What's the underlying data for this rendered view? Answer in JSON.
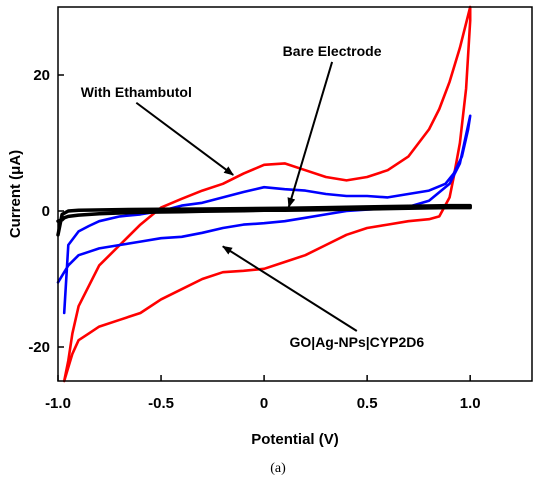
{
  "chart_data": {
    "type": "line",
    "xlabel": "Potential (V)",
    "ylabel": "Current (μA)",
    "xlim": [
      -1.0,
      1.3
    ],
    "ylim": [
      -25,
      30
    ],
    "xticks": [
      -1.0,
      -0.5,
      0,
      0.5,
      1.0
    ],
    "xtick_labels": [
      "-1.0",
      "-0.5",
      "0",
      "0.5",
      "1.0"
    ],
    "yticks": [
      -20,
      0,
      20
    ],
    "ytick_labels": [
      "-20",
      "0",
      "20"
    ],
    "grid": false,
    "legend": "none",
    "series": [
      {
        "color": "#ff0000",
        "x": [
          -0.97,
          -0.95,
          -0.93,
          -0.9,
          -0.85,
          -0.8,
          -0.7,
          -0.6,
          -0.5,
          -0.4,
          -0.3,
          -0.2,
          -0.1,
          0.0,
          0.1,
          0.2,
          0.3,
          0.4,
          0.5,
          0.6,
          0.7,
          0.8,
          0.85,
          0.9,
          0.95,
          1.0,
          1.0,
          0.98,
          0.95,
          0.92,
          0.9,
          0.85,
          0.8,
          0.7,
          0.6,
          0.5,
          0.4,
          0.3,
          0.2,
          0.1,
          0.0,
          -0.1,
          -0.2,
          -0.3,
          -0.4,
          -0.5,
          -0.6,
          -0.7,
          -0.8,
          -0.85,
          -0.9,
          -0.93,
          -0.95,
          -0.97
        ],
        "y": [
          -25,
          -22,
          -18,
          -14,
          -11,
          -8,
          -5,
          -2,
          0.5,
          1.8,
          3,
          4,
          5.5,
          6.8,
          7,
          6,
          5,
          4.5,
          5,
          6,
          8,
          12,
          15,
          19,
          24,
          30,
          28,
          18,
          10,
          5,
          2,
          -0.8,
          -1.2,
          -1.5,
          -2,
          -2.5,
          -3.5,
          -5,
          -6.5,
          -7.5,
          -8.5,
          -8.8,
          -9,
          -10,
          -11.5,
          -13,
          -15,
          -16,
          -17,
          -18,
          -19,
          -21,
          -23,
          -25
        ]
      },
      {
        "color": "#0000ff",
        "x": [
          -1.0,
          -0.95,
          -0.9,
          -0.85,
          -0.8,
          -0.7,
          -0.6,
          -0.5,
          -0.4,
          -0.3,
          -0.2,
          -0.1,
          0.0,
          0.1,
          0.2,
          0.3,
          0.4,
          0.5,
          0.6,
          0.7,
          0.8,
          0.9,
          0.95,
          1.0,
          0.99,
          0.96,
          0.92,
          0.88,
          0.8,
          0.7,
          0.6,
          0.5,
          0.4,
          0.3,
          0.2,
          0.1,
          0.0,
          -0.1,
          -0.2,
          -0.3,
          -0.4,
          -0.5,
          -0.6,
          -0.7,
          -0.8,
          -0.85,
          -0.9,
          -0.95,
          -0.97
        ],
        "y": [
          -10.5,
          -8,
          -6.5,
          -6,
          -5.5,
          -5,
          -4.5,
          -4,
          -3.8,
          -3.2,
          -2.5,
          -2,
          -1.8,
          -1.5,
          -1,
          -0.5,
          0,
          0.2,
          0.4,
          0.6,
          1.5,
          4,
          7,
          14,
          12,
          8,
          5.5,
          4,
          3,
          2.5,
          2,
          2.2,
          2.2,
          2.5,
          3,
          3.2,
          3.5,
          2.8,
          2,
          1.2,
          0.8,
          0,
          -0.5,
          -0.8,
          -1.5,
          -2.2,
          -3,
          -5,
          -15
        ]
      },
      {
        "color": "#000000",
        "x": [
          -1.0,
          -0.98,
          -0.97,
          -0.95,
          -0.9,
          -0.8,
          -0.7,
          -0.6,
          -0.5,
          -0.4,
          -0.3,
          -0.2,
          -0.1,
          0.0,
          0.1,
          0.2,
          0.3,
          0.4,
          0.5,
          0.6,
          0.7,
          0.8,
          0.9,
          1.0,
          1.0,
          0.9,
          0.7,
          0.5,
          0.3,
          0.1,
          -0.1,
          -0.3,
          -0.5,
          -0.7,
          -0.9,
          -0.95,
          -0.98,
          -1.0
        ],
        "y": [
          -1.5,
          -1.3,
          -1.0,
          -0.8,
          -0.6,
          -0.4,
          -0.3,
          -0.2,
          -0.15,
          -0.1,
          -0.05,
          0,
          0.05,
          0.1,
          0.1,
          0.15,
          0.2,
          0.25,
          0.3,
          0.35,
          0.4,
          0.45,
          0.5,
          0.5,
          0.8,
          0.8,
          0.7,
          0.6,
          0.5,
          0.4,
          0.35,
          0.3,
          0.25,
          0.2,
          0.1,
          0,
          -0.5,
          -3.5
        ]
      }
    ],
    "annotations": [
      {
        "label": "With Ethambutol",
        "text_at": [
          -0.62,
          16.8
        ],
        "arrow_to": [
          -0.15,
          5.3
        ]
      },
      {
        "label": "Bare Electrode",
        "text_at": [
          0.33,
          22.8
        ],
        "arrow_to": [
          0.12,
          0.6
        ]
      },
      {
        "label": "GO|Ag-NPs|CYP2D6",
        "text_at": [
          0.45,
          -20
        ],
        "arrow_to": [
          -0.2,
          -5.2
        ]
      }
    ]
  },
  "caption": "(a)"
}
